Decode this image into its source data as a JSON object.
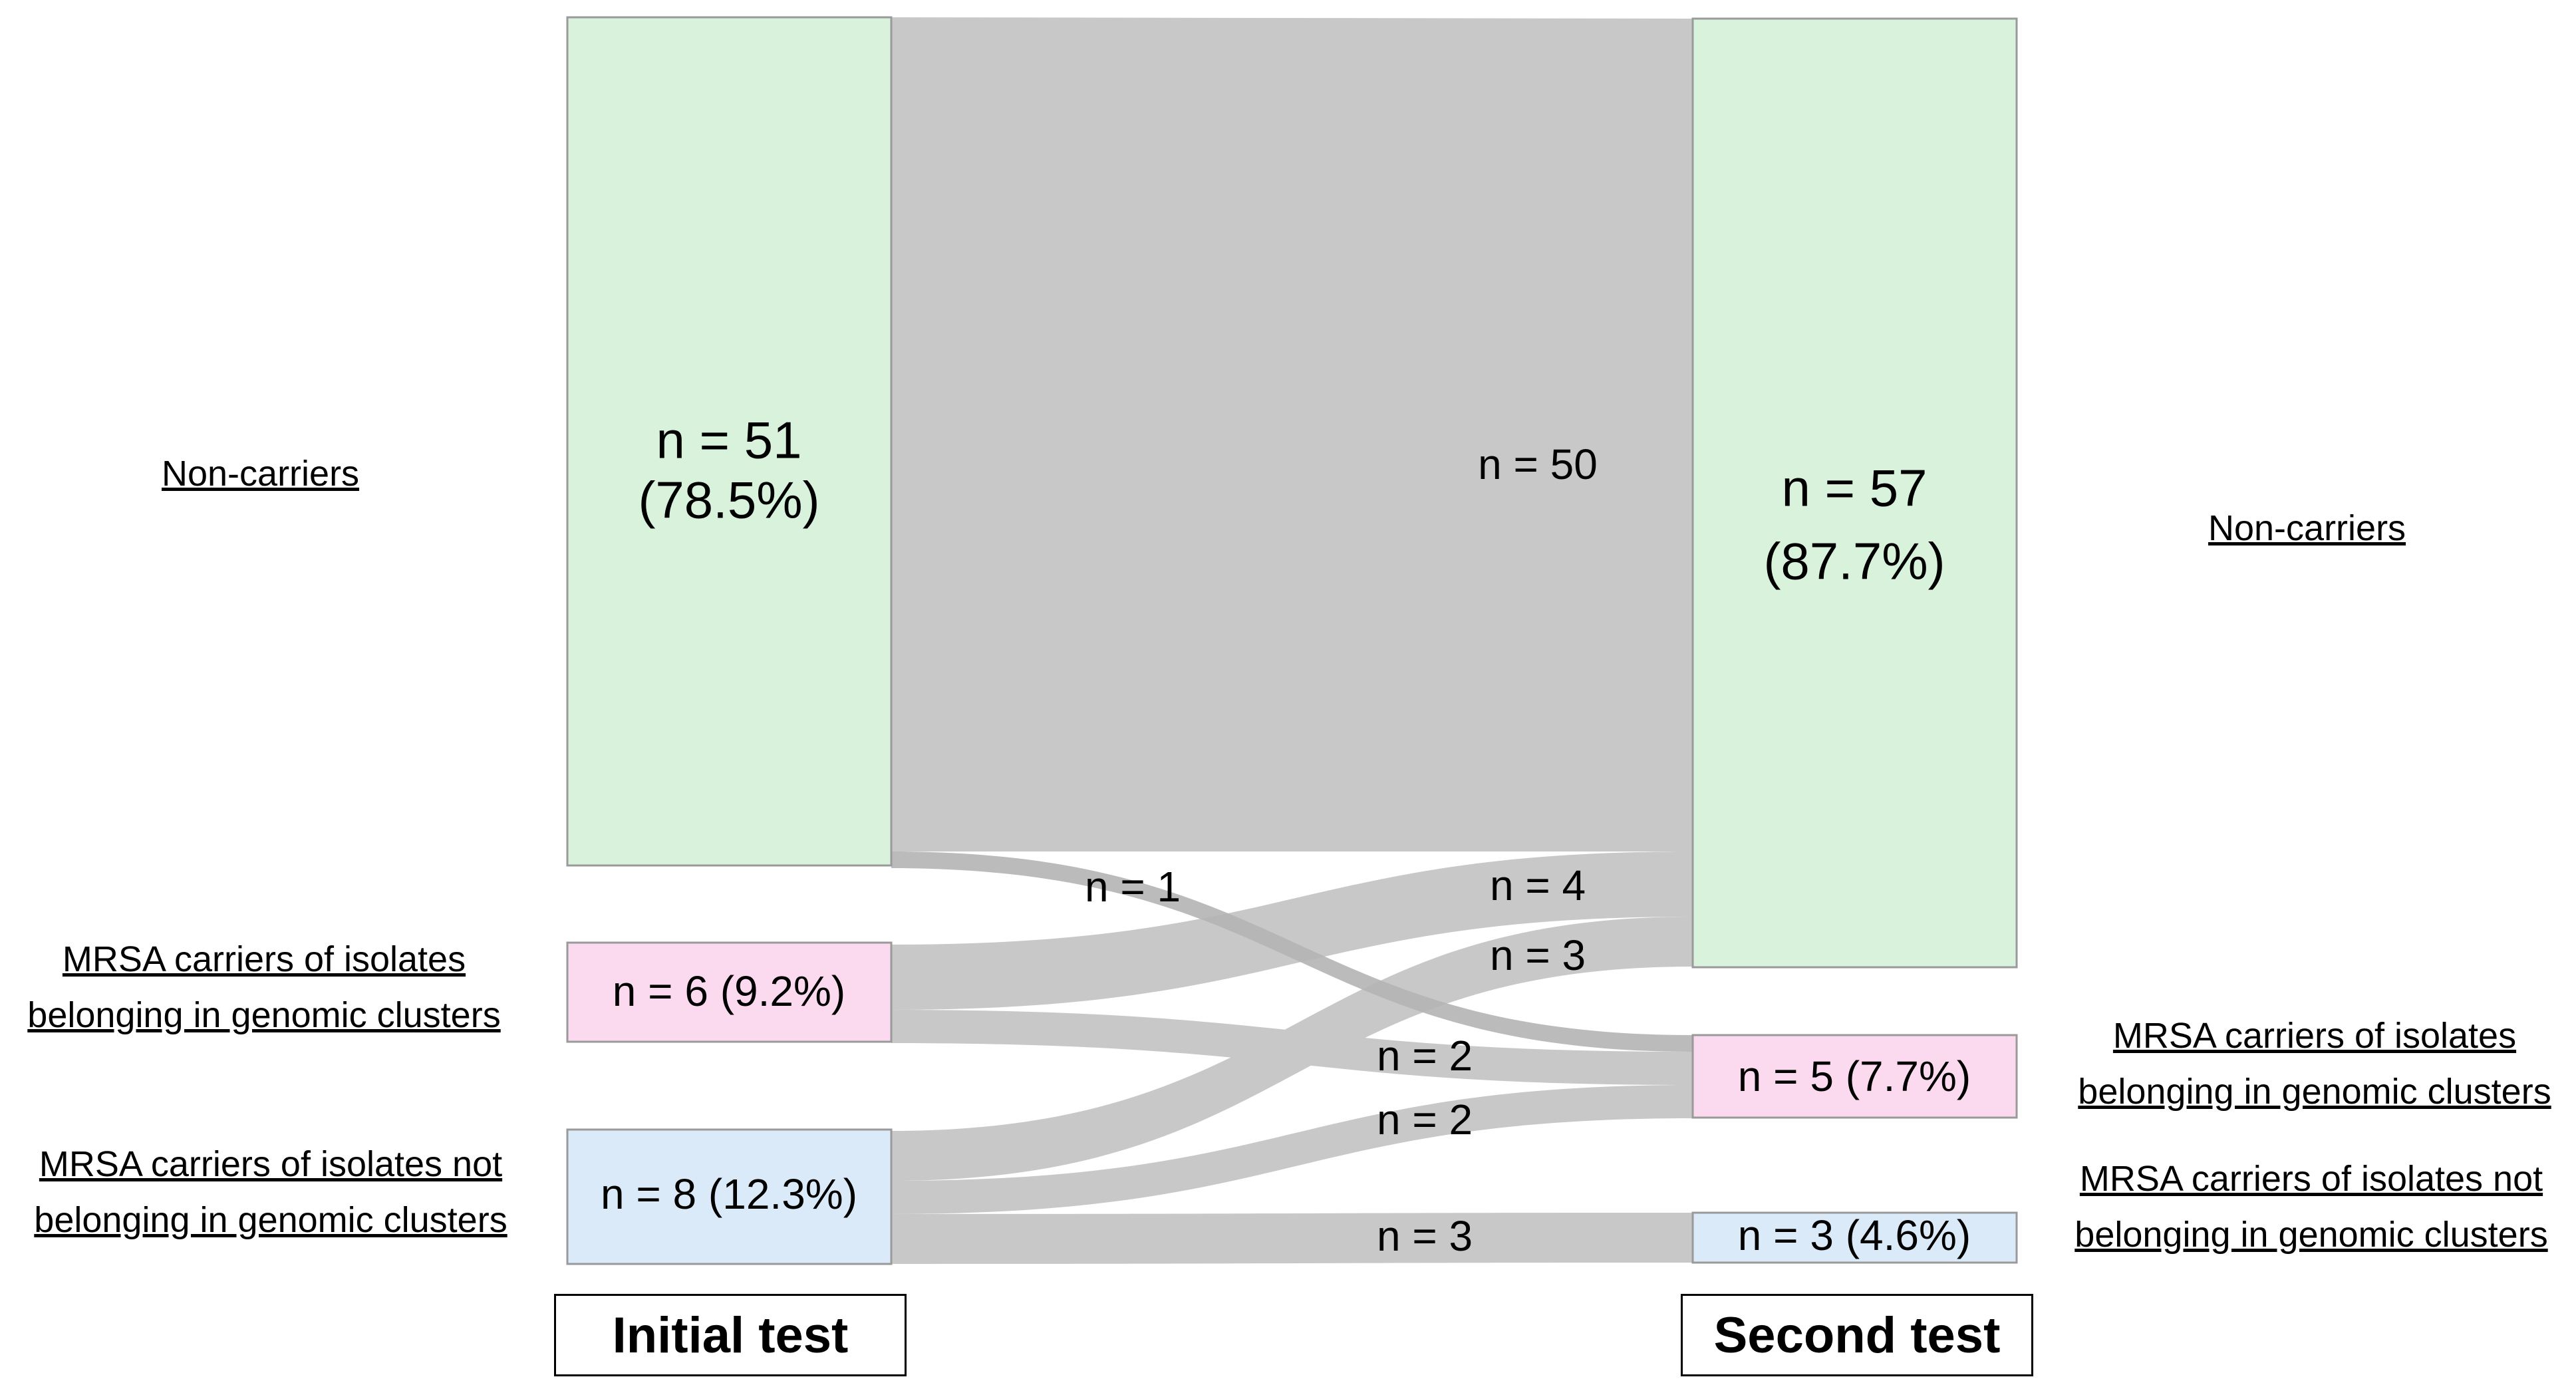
{
  "colors": {
    "flow": "#c8c8c8",
    "non_carrier_fill": "#d8f2dc",
    "cluster_fill": "#fbd9ef",
    "not_cluster_fill": "#daeaf8",
    "node_stroke": "#9a9a9a"
  },
  "left_labels": {
    "non_carriers": "Non-carriers",
    "cluster_line1": "MRSA carriers of isolates",
    "cluster_line2": "belonging in genomic clusters",
    "not_cluster_line1": "MRSA carriers of isolates not",
    "not_cluster_line2": "belonging in genomic clusters"
  },
  "right_labels": {
    "non_carriers": "Non-carriers",
    "cluster_line1": "MRSA carriers of isolates",
    "cluster_line2": "belonging in genomic clusters",
    "not_cluster_line1": "MRSA carriers of isolates not",
    "not_cluster_line2": "belonging in genomic clusters"
  },
  "nodes": {
    "initial_non_line1": "n = 51",
    "initial_non_line2": "(78.5%)",
    "initial_cluster": "n = 6 (9.2%)",
    "initial_not_cluster": "n = 8 (12.3%)",
    "second_non_line1": "n = 57",
    "second_non_line2": "(87.7%)",
    "second_cluster": "n = 5 (7.7%)",
    "second_not_cluster": "n = 3 (4.6%)"
  },
  "flows": {
    "non_to_non": "n = 50",
    "non_to_cluster": "n = 1",
    "cluster_to_non": "n = 4",
    "not_cluster_to_non": "n = 3",
    "cluster_to_cluster": "n = 2",
    "not_cluster_to_cluster": "n = 2",
    "not_cluster_to_not_cluster": "n = 3"
  },
  "stages": {
    "initial": "Initial test",
    "second": "Second test"
  }
}
